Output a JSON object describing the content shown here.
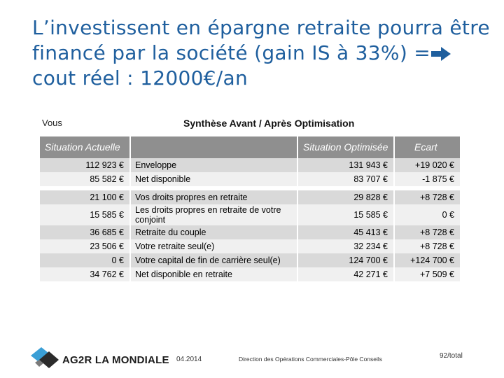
{
  "slide": {
    "title_part1": "L’investissent en épargne retraite pourra être financé par la société (gain IS à 33%) =",
    "title_part2": " cout réel : 12000€/an",
    "arrow_icon": "right-arrow-icon"
  },
  "table": {
    "vous_label": "Vous",
    "title": "Synthèse Avant / Après Optimisation",
    "headers": {
      "actuelle": "Situation Actuelle",
      "label": "",
      "optimisee": "Situation Optimisée",
      "ecart": "Ecart"
    },
    "rows": [
      {
        "actuelle": "112 923 €",
        "label": "Enveloppe",
        "optimisee": "131 943 €",
        "ecart": "+19 020 €"
      },
      {
        "actuelle": "85 582 €",
        "label": "Net disponible",
        "optimisee": "83 707 €",
        "ecart": "-1 875 €"
      },
      {
        "actuelle": "21 100 €",
        "label": "Vos droits propres en retraite",
        "optimisee": "29 828 €",
        "ecart": "+8 728 €"
      },
      {
        "actuelle": "15 585 €",
        "label": "Les droits propres en retraite de votre conjoint",
        "optimisee": "15 585 €",
        "ecart": "0 €"
      },
      {
        "actuelle": "36 685 €",
        "label": "Retraite du couple",
        "optimisee": "45 413 €",
        "ecart": "+8 728 €"
      },
      {
        "actuelle": "23 506 €",
        "label": "Votre retraite seul(e)",
        "optimisee": "32 234 €",
        "ecart": "+8 728 €"
      },
      {
        "actuelle": "0 €",
        "label": "Votre capital de fin de carrière seul(e)",
        "optimisee": "124 700 €",
        "ecart": "+124 700 €"
      },
      {
        "actuelle": "34 762 €",
        "label": "Net disponible en retraite",
        "optimisee": "42 271 €",
        "ecart": "+7 509 €"
      }
    ]
  },
  "footer": {
    "brand": "AG2R LA MONDIALE",
    "date": "04.2014",
    "direction": "Direction des Opérations Commerciales-Pôle Conseils",
    "page": "92/total",
    "colors": {
      "logo_blue": "#3a9fd6",
      "logo_dark": "#2b2b2b",
      "title": "#1f5f9e"
    }
  }
}
